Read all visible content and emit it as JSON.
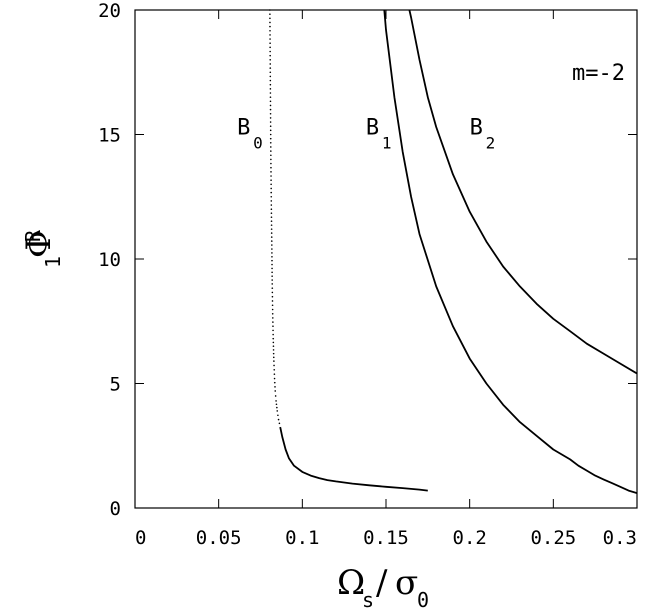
{
  "chart_data": {
    "type": "line",
    "annotation": "m=-2",
    "xlabel": {
      "main": "Ω",
      "sub": "s",
      "slash": "/",
      "den": "σ",
      "den_sub": "0"
    },
    "ylabel": {
      "main": "Φ",
      "sub": "1",
      "sup": "R"
    },
    "xlim": [
      0,
      0.3
    ],
    "ylim": [
      0,
      20
    ],
    "xticks": [
      0,
      0.05,
      0.1,
      0.15,
      0.2,
      0.25,
      0.3
    ],
    "xtick_labels": [
      "0",
      "0.05",
      "0.1",
      "0.15",
      "0.2",
      "0.25",
      "0.3"
    ],
    "yticks": [
      0,
      5,
      10,
      15,
      20
    ],
    "ytick_labels": [
      "0",
      "5",
      "10",
      "15",
      "20"
    ],
    "grid": false,
    "series": [
      {
        "name": "B",
        "sub": "0",
        "style": "dotted",
        "x": [
          0.0806,
          0.0808,
          0.081,
          0.0812,
          0.0815,
          0.0818,
          0.082,
          0.0823,
          0.0826,
          0.083,
          0.0834,
          0.0838,
          0.0843,
          0.085,
          0.0858,
          0.0868
        ],
        "y": [
          20.0,
          18.0,
          16.0,
          14.0,
          12.0,
          10.4,
          9.0,
          7.8,
          6.8,
          5.9,
          5.2,
          4.7,
          4.3,
          3.9,
          3.55,
          3.25
        ],
        "label_at": [
          0.061,
          15.0
        ]
      },
      {
        "name": "",
        "style": "solid",
        "x": [
          0.0868,
          0.088,
          0.09,
          0.092,
          0.095,
          0.1,
          0.105,
          0.11,
          0.115,
          0.12,
          0.13,
          0.14,
          0.15,
          0.16,
          0.17,
          0.175
        ],
        "y": [
          3.25,
          2.85,
          2.35,
          2.0,
          1.7,
          1.45,
          1.3,
          1.2,
          1.12,
          1.07,
          0.98,
          0.91,
          0.85,
          0.8,
          0.74,
          0.7
        ]
      },
      {
        "name": "B",
        "sub": "1",
        "style": "solid",
        "x": [
          0.149,
          0.15,
          0.155,
          0.16,
          0.165,
          0.17,
          0.18,
          0.19,
          0.2,
          0.21,
          0.22,
          0.23,
          0.24,
          0.25,
          0.26,
          0.265,
          0.27,
          0.275,
          0.28,
          0.285,
          0.29,
          0.295,
          0.3
        ],
        "y": [
          20.0,
          19.2,
          16.5,
          14.3,
          12.5,
          11.0,
          8.9,
          7.3,
          6.0,
          5.0,
          4.15,
          3.45,
          2.9,
          2.35,
          1.95,
          1.7,
          1.5,
          1.3,
          1.15,
          1.0,
          0.85,
          0.7,
          0.6
        ],
        "label_at": [
          0.138,
          15.0
        ]
      },
      {
        "name": "B",
        "sub": "2",
        "style": "solid",
        "x": [
          0.164,
          0.165,
          0.17,
          0.175,
          0.18,
          0.19,
          0.2,
          0.21,
          0.22,
          0.23,
          0.24,
          0.25,
          0.26,
          0.27,
          0.28,
          0.29,
          0.3
        ],
        "y": [
          20.0,
          19.7,
          18.0,
          16.5,
          15.3,
          13.4,
          11.9,
          10.7,
          9.7,
          8.9,
          8.2,
          7.6,
          7.1,
          6.6,
          6.2,
          5.8,
          5.4
        ],
        "label_at": [
          0.2,
          15.0
        ]
      }
    ]
  }
}
